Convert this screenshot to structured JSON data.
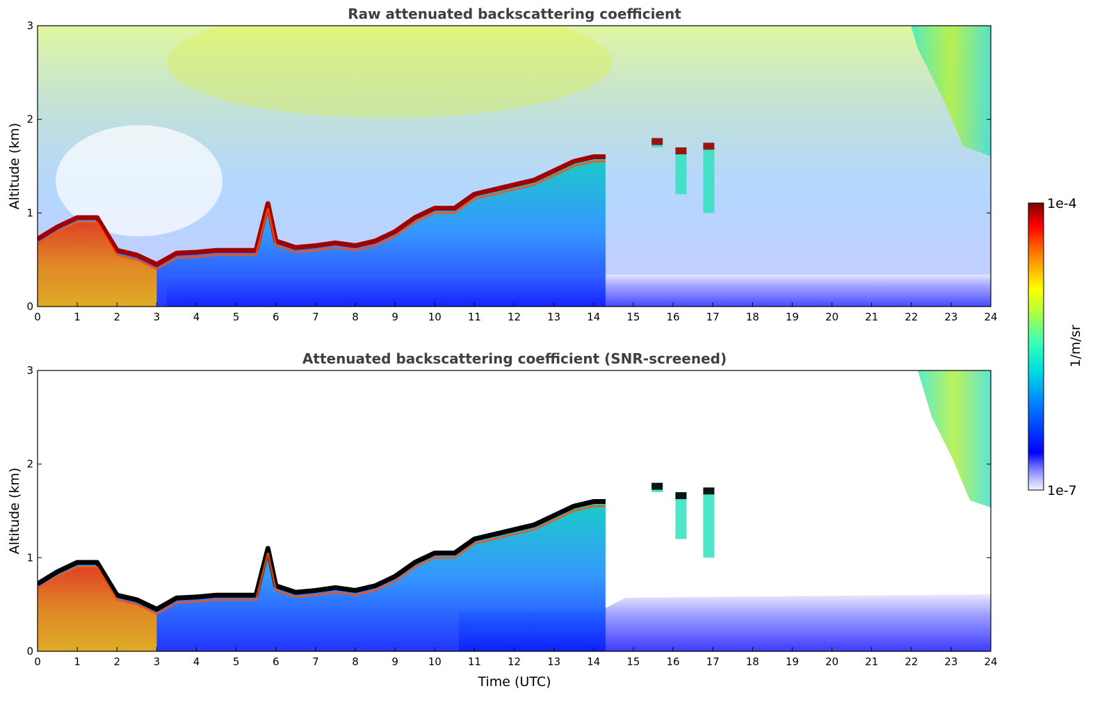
{
  "chart_data": [
    {
      "type": "heatmap",
      "title": "Raw attenuated backscattering coefficient",
      "xlabel": "",
      "ylabel": "Altitude (km)",
      "xlim": [
        0,
        24
      ],
      "ylim": [
        0,
        3
      ],
      "xticks": [
        "0",
        "1",
        "2",
        "3",
        "4",
        "5",
        "6",
        "7",
        "8",
        "9",
        "10",
        "11",
        "12",
        "13",
        "14",
        "15",
        "16",
        "17",
        "18",
        "19",
        "20",
        "21",
        "22",
        "23",
        "24"
      ],
      "yticks": [
        "0",
        "1",
        "2",
        "3"
      ],
      "layer_top_km": [
        [
          0,
          0.72
        ],
        [
          0.5,
          0.85
        ],
        [
          1,
          0.95
        ],
        [
          1.5,
          0.95
        ],
        [
          2,
          0.6
        ],
        [
          2.5,
          0.55
        ],
        [
          3,
          0.45
        ],
        [
          3.5,
          0.57
        ],
        [
          4,
          0.58
        ],
        [
          4.5,
          0.6
        ],
        [
          5,
          0.6
        ],
        [
          5.5,
          0.6
        ],
        [
          5.8,
          1.1
        ],
        [
          6,
          0.7
        ],
        [
          6.5,
          0.63
        ],
        [
          7,
          0.65
        ],
        [
          7.5,
          0.68
        ],
        [
          8,
          0.65
        ],
        [
          8.5,
          0.7
        ],
        [
          9,
          0.8
        ],
        [
          9.5,
          0.95
        ],
        [
          10,
          1.05
        ],
        [
          10.5,
          1.05
        ],
        [
          11,
          1.2
        ],
        [
          11.5,
          1.25
        ],
        [
          12,
          1.3
        ],
        [
          12.5,
          1.35
        ],
        [
          13,
          1.45
        ],
        [
          13.5,
          1.55
        ],
        [
          14,
          1.6
        ],
        [
          14.3,
          1.6
        ]
      ],
      "upper_clouds": [
        {
          "x": 15.6,
          "top": 1.8,
          "bottom": 1.7
        },
        {
          "x": 16.2,
          "top": 1.7,
          "bottom": 1.2
        },
        {
          "x": 16.9,
          "top": 1.75,
          "bottom": 1.0
        }
      ],
      "high_cloud": {
        "x0": 22.3,
        "x1": 24,
        "top": 3,
        "bottom": 1.6
      },
      "colorbar_max": "1e-4",
      "colorbar_min": "1e-7",
      "colorbar_unit": "1/m/sr"
    },
    {
      "type": "heatmap",
      "title": "Attenuated backscattering coefficient (SNR-screened)",
      "xlabel": "Time (UTC)",
      "ylabel": "Altitude (km)",
      "xlim": [
        0,
        24
      ],
      "ylim": [
        0,
        3
      ],
      "xticks": [
        "0",
        "1",
        "2",
        "3",
        "4",
        "5",
        "6",
        "7",
        "8",
        "9",
        "10",
        "11",
        "12",
        "13",
        "14",
        "15",
        "16",
        "17",
        "18",
        "19",
        "20",
        "21",
        "22",
        "23",
        "24"
      ],
      "yticks": [
        "0",
        "1",
        "2",
        "3"
      ],
      "colorbar_max": "1e-4",
      "colorbar_min": "1e-7",
      "colorbar_unit": "1/m/sr"
    }
  ]
}
